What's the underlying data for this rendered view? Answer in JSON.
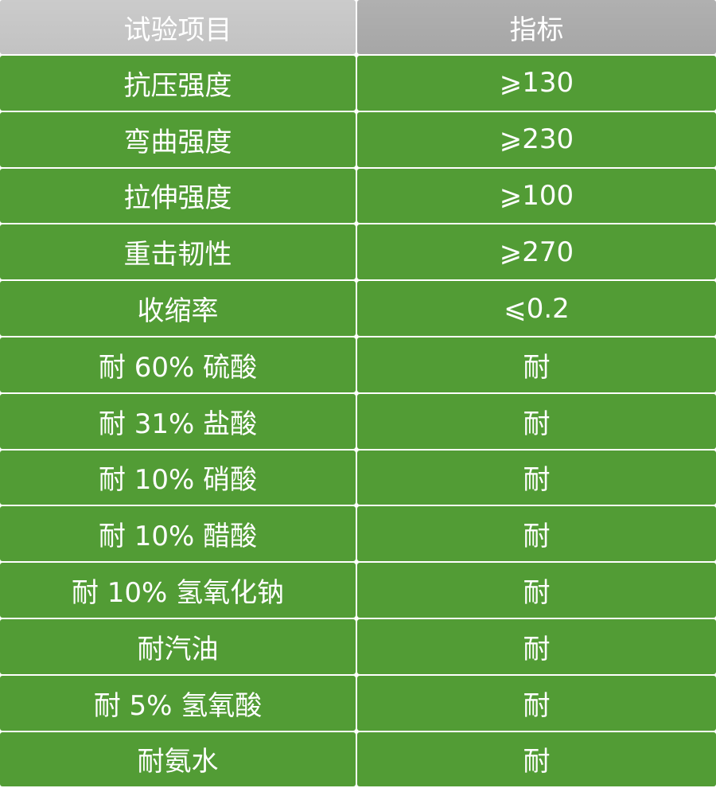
{
  "headers": [
    "试验项目",
    "指标"
  ],
  "rows": [
    {
      "item": "抗压强度",
      "value": "⩾130"
    },
    {
      "item": "弯曲强度",
      "value": "⩾230"
    },
    {
      "item": "拉伸强度",
      "value": "⩾100"
    },
    {
      "item": "重击韧性",
      "value": "⩾270"
    },
    {
      "item": "收缩率",
      "value": "⩽0.2"
    },
    {
      "item": "耐 60% 硫酸",
      "value": "耐"
    },
    {
      "item": "耐 31% 盐酸",
      "value": "耐"
    },
    {
      "item": "耐 10% 硝酸",
      "value": "耐"
    },
    {
      "item": "耐 10% 醋酸",
      "value": "耐"
    },
    {
      "item": "耐 10% 氢氧化钠",
      "value": "耐"
    },
    {
      "item": "耐汽油",
      "value": "耐"
    },
    {
      "item": "耐 5% 氢氧酸",
      "value": "耐"
    },
    {
      "item": "耐氨水",
      "value": "耐"
    }
  ],
  "colors": {
    "row_bg": "#529c35",
    "header_left": "#c6c6c6",
    "header_right": "#aaaaaa"
  }
}
